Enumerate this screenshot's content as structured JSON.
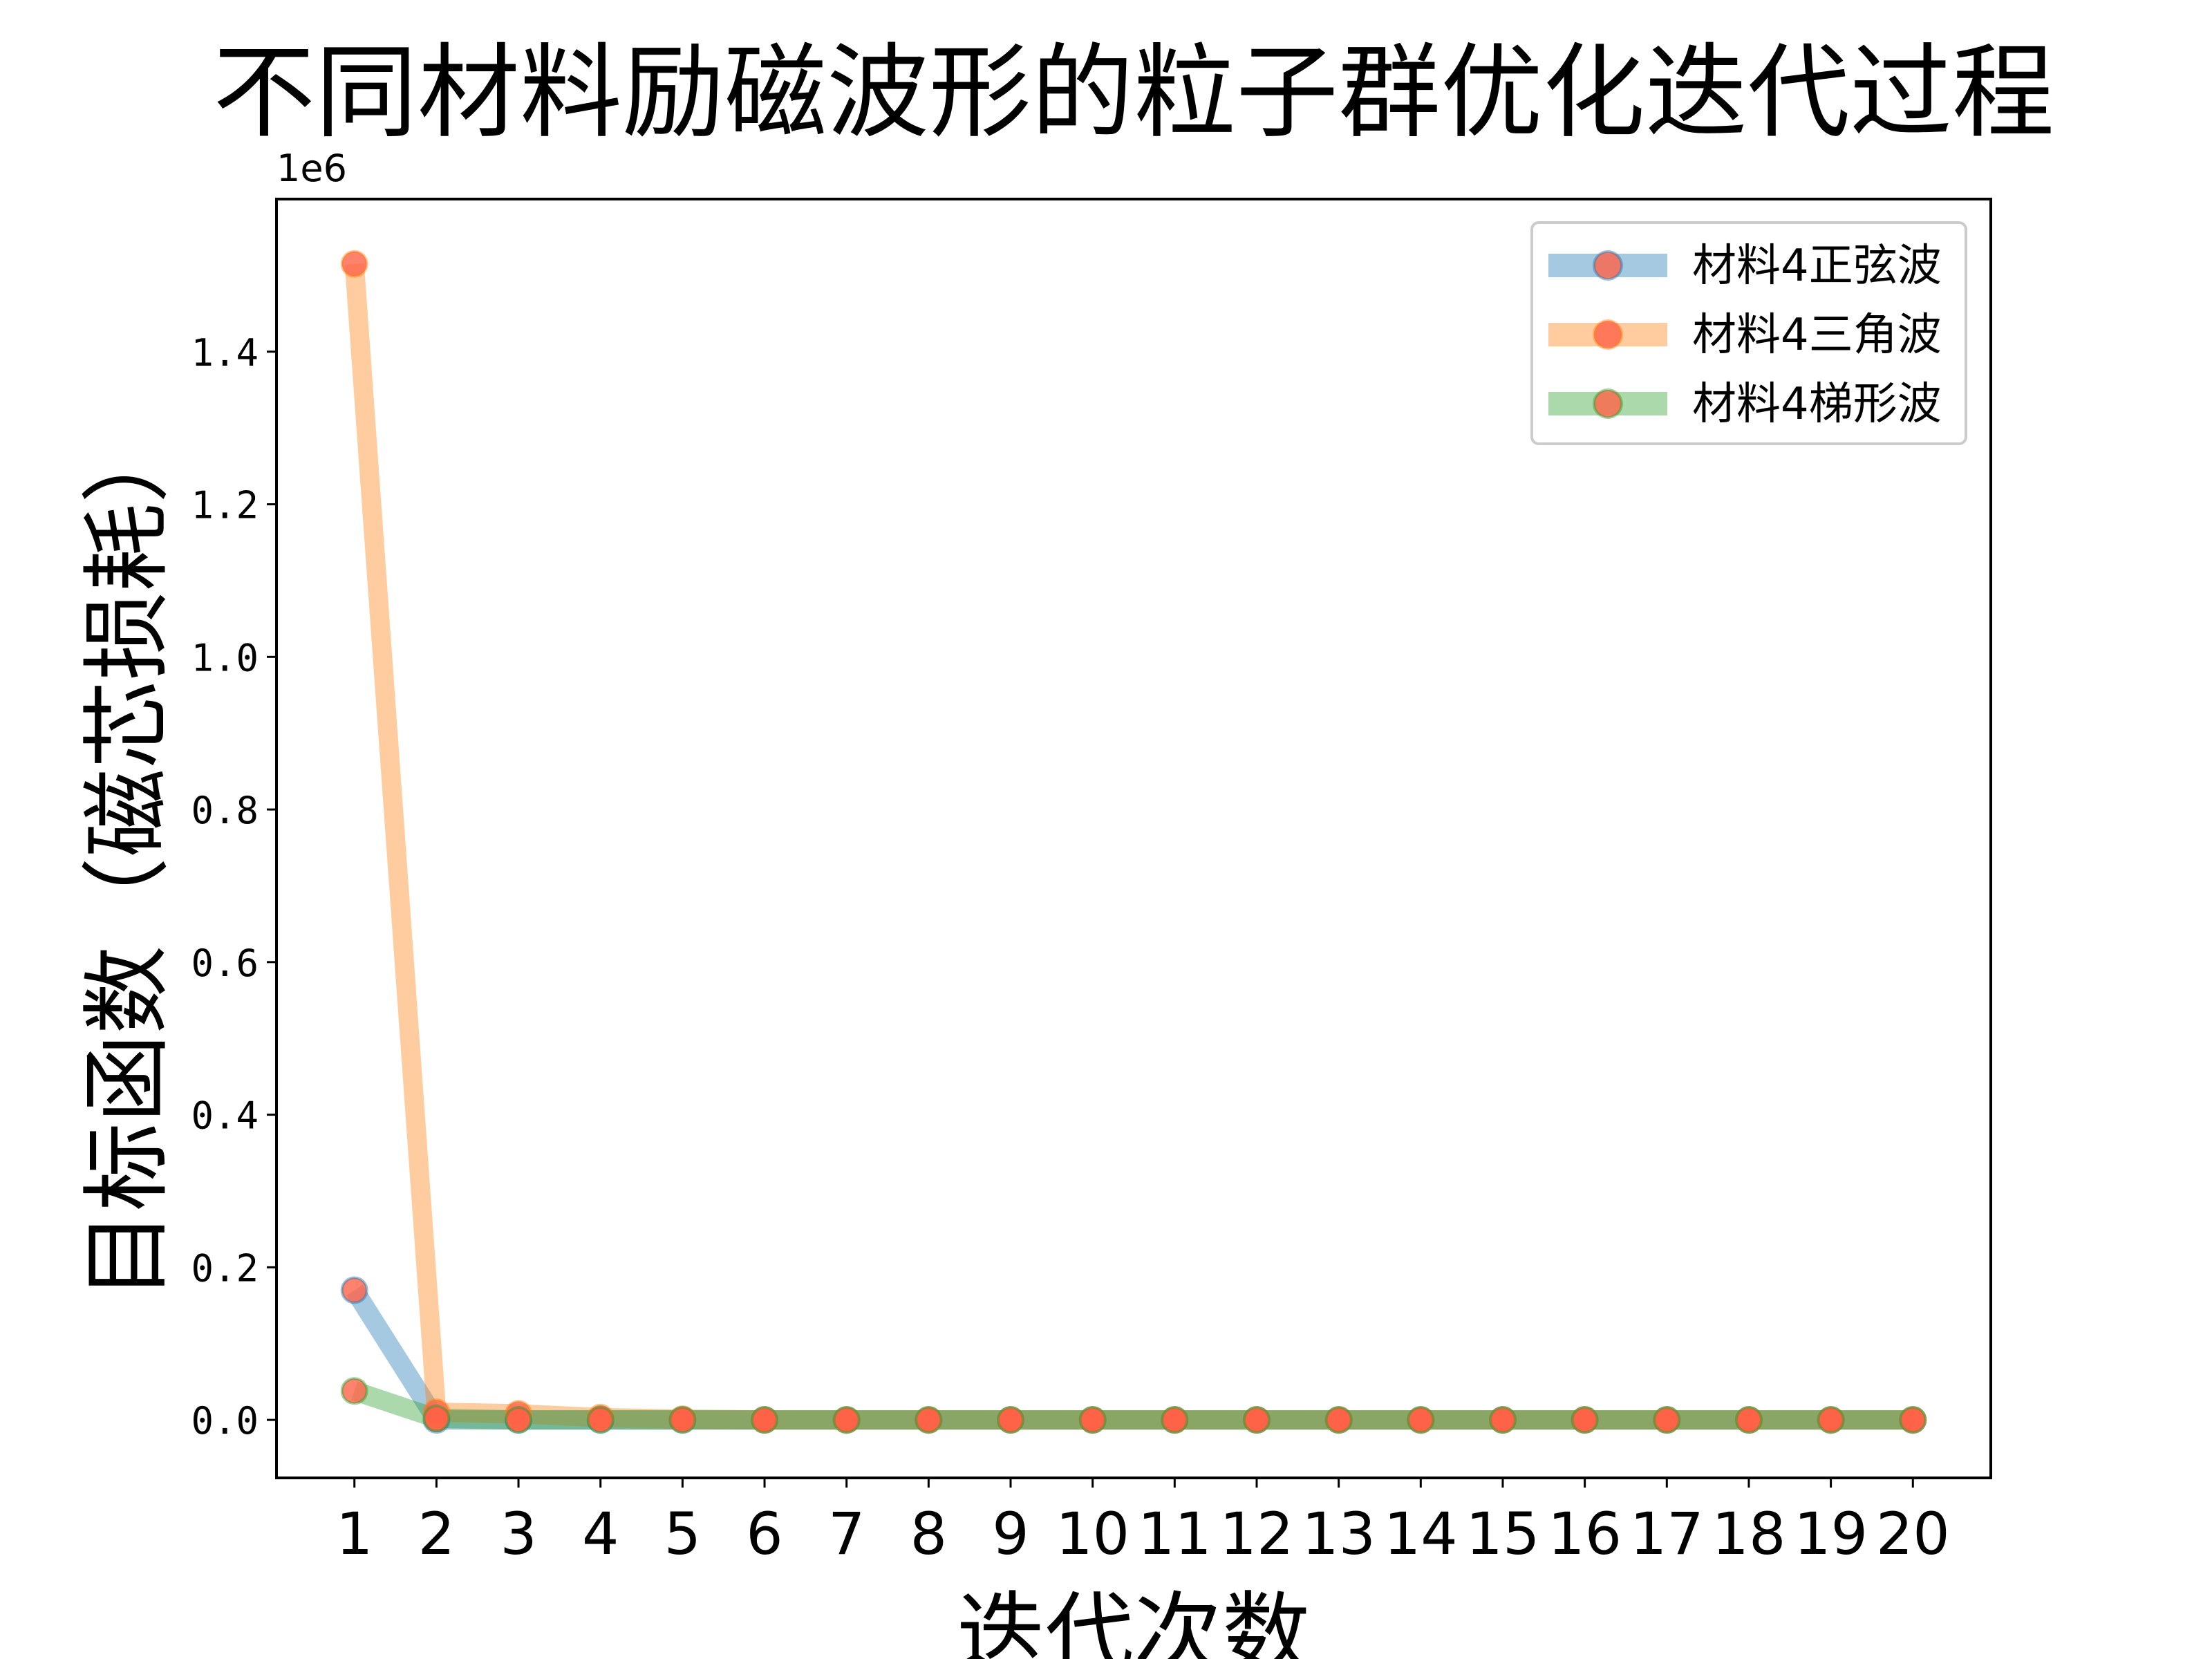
{
  "chart_data": {
    "type": "line",
    "title": "不同材料励磁波形的粒子群优化迭代过程",
    "xlabel": "迭代次数",
    "ylabel": "目标函数（磁芯损耗）",
    "y_offset_label": "1e6",
    "x": [
      1,
      2,
      3,
      4,
      5,
      6,
      7,
      8,
      9,
      10,
      11,
      12,
      13,
      14,
      15,
      16,
      17,
      18,
      19,
      20
    ],
    "x_ticks": [
      "1",
      "2",
      "3",
      "4",
      "5",
      "6",
      "7",
      "8",
      "9",
      "10",
      "11",
      "12",
      "13",
      "14",
      "15",
      "16",
      "17",
      "18",
      "19",
      "20"
    ],
    "y_ticks": [
      0.0,
      0.2,
      0.4,
      0.6,
      0.8,
      1.0,
      1.2,
      1.4
    ],
    "y_tick_labels": [
      "0.0",
      "0.2",
      "0.4",
      "0.6",
      "0.8",
      "1.0",
      "1.2",
      "1.4"
    ],
    "xlim": [
      0.05,
      20.95
    ],
    "ylim": [
      -0.076,
      1.6
    ],
    "grid": false,
    "legend_position": "top-right",
    "marker_color": "#ff6347",
    "series": [
      {
        "name": "材料4正弦波",
        "color": "#1f77b4",
        "values": [
          0.17,
          0.0,
          0.0,
          0.0,
          0.0,
          0.0,
          0.0,
          0.0,
          0.0,
          0.0,
          0.0,
          0.0,
          0.0,
          0.0,
          0.0,
          0.0,
          0.0,
          0.0,
          0.0,
          0.0
        ]
      },
      {
        "name": "材料4三角波",
        "color": "#ff7f0e",
        "values": [
          1.515,
          0.01,
          0.008,
          0.003,
          0.001,
          0.0,
          0.0,
          0.0,
          0.0,
          0.0,
          0.0,
          0.0,
          0.0,
          0.0,
          0.0,
          0.0,
          0.0,
          0.0,
          0.0,
          0.0
        ]
      },
      {
        "name": "材料4梯形波",
        "color": "#2ca02c",
        "values": [
          0.038,
          0.002,
          0.0,
          0.0,
          0.0,
          0.0,
          0.0,
          0.0,
          0.0,
          0.0,
          0.0,
          0.0,
          0.0,
          0.0,
          0.0,
          0.0,
          0.0,
          0.0,
          0.0,
          0.0
        ]
      }
    ]
  }
}
